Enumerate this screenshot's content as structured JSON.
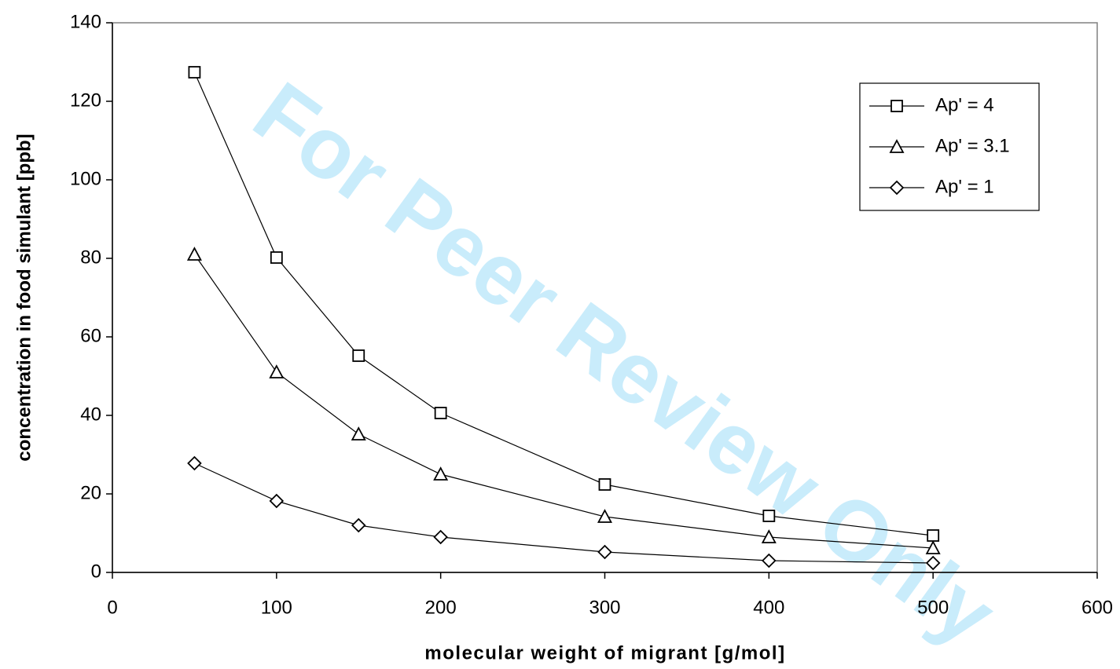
{
  "chart_data": {
    "type": "line",
    "xlabel": "molecular weight of migrant [g/mol]",
    "ylabel": "concentration in food simulant [ppb]",
    "watermark": "For Peer Review Only",
    "x": [
      50,
      100,
      150,
      200,
      300,
      400,
      500
    ],
    "series": [
      {
        "name": "Ap' = 4",
        "color": "#000000",
        "marker": "square",
        "values": [
          127.4,
          80.2,
          55.2,
          40.6,
          22.4,
          14.4,
          9.4
        ]
      },
      {
        "name": "Ap' = 3.1",
        "color": "#000000",
        "marker": "triangle",
        "values": [
          81,
          51,
          35.2,
          25,
          14.2,
          9,
          6.2
        ]
      },
      {
        "name": "Ap' = 1",
        "color": "#000000",
        "marker": "diamond",
        "values": [
          27.8,
          18.2,
          12,
          9,
          5.2,
          3,
          2.4
        ]
      }
    ],
    "xlim": [
      0,
      600
    ],
    "xticks": [
      0,
      100,
      200,
      300,
      400,
      500,
      600
    ],
    "ylim": [
      0,
      140
    ],
    "yticks": [
      0,
      20,
      40,
      60,
      80,
      100,
      120,
      140
    ],
    "legend": "upper right",
    "grid": false
  }
}
